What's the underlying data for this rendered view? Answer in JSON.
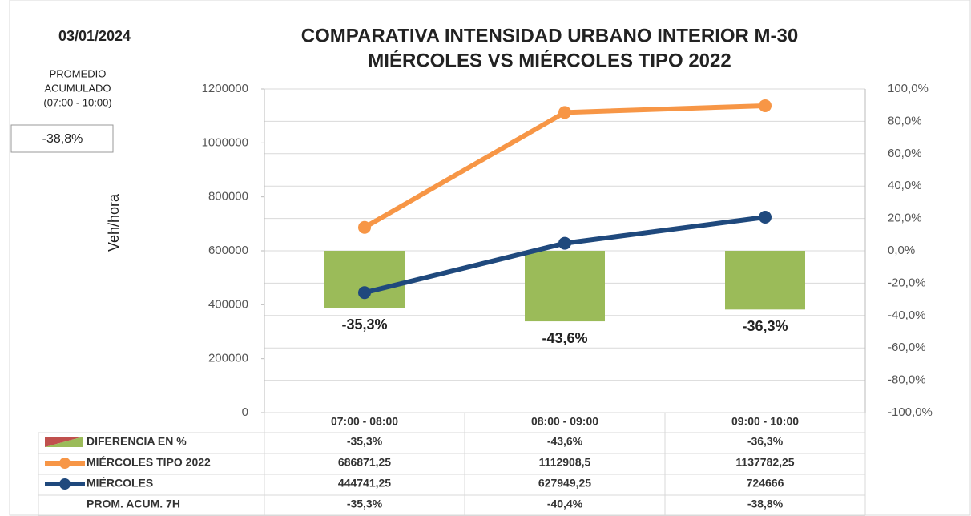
{
  "chart_data": {
    "type": "bar_line_table",
    "date": "03/01/2024",
    "title": [
      "COMPARATIVA INTENSIDAD URBANO INTERIOR M-30",
      "MIÉRCOLES VS MIÉRCOLES TIPO 2022"
    ],
    "side_label": [
      "PROMEDIO",
      "ACUMULADO",
      "(07:00 - 10:00)"
    ],
    "side_value": "-38,8%",
    "y_label": "Veh/hora",
    "categories": [
      "07:00 - 08:00",
      "08:00 - 09:00",
      "09:00 - 10:00"
    ],
    "ylim": [
      0,
      1200000
    ],
    "yticks": [
      0,
      200000,
      400000,
      600000,
      800000,
      1000000,
      1200000
    ],
    "y2lim": [
      -100,
      100
    ],
    "y2ticks": [
      {
        "value": -100,
        "label": "-100,0%"
      },
      {
        "value": -80,
        "label": "-80,0%"
      },
      {
        "value": -60,
        "label": "-60,0%"
      },
      {
        "value": -40,
        "label": "-40,0%"
      },
      {
        "value": -20,
        "label": "-20,0%"
      },
      {
        "value": 0,
        "label": "0,0%"
      },
      {
        "value": 20,
        "label": "20,0%"
      },
      {
        "value": 40,
        "label": "40,0%"
      },
      {
        "value": 60,
        "label": "60,0%"
      },
      {
        "value": 80,
        "label": "80,0%"
      },
      {
        "value": 100,
        "label": "100,0%"
      }
    ],
    "grid": true,
    "series": [
      {
        "name": "DIFERENCIA EN %",
        "type": "bar",
        "axis": "y2",
        "color": "#9bbb59",
        "values": [
          -35.3,
          -43.6,
          -36.3
        ],
        "value_labels": [
          "-35,3%",
          "-43,6%",
          "-36,3%"
        ]
      },
      {
        "name": "MIÉRCOLES TIPO 2022",
        "type": "line",
        "color": "#f79646",
        "values": [
          686871.25,
          1112908.5,
          1137782.25
        ],
        "value_labels": [
          "686871,25",
          "1112908,5",
          "1137782,25"
        ]
      },
      {
        "name": "MIÉRCOLES",
        "type": "line",
        "color": "#1f497d",
        "values": [
          444741.25,
          627949.25,
          724666
        ],
        "value_labels": [
          "444741,25",
          "627949,25",
          "724666"
        ]
      }
    ],
    "extra_rows": [
      {
        "name": "PROM. ACUM. 7H",
        "values": [
          "-35,3%",
          "-40,4%",
          "-38,8%"
        ]
      }
    ]
  }
}
